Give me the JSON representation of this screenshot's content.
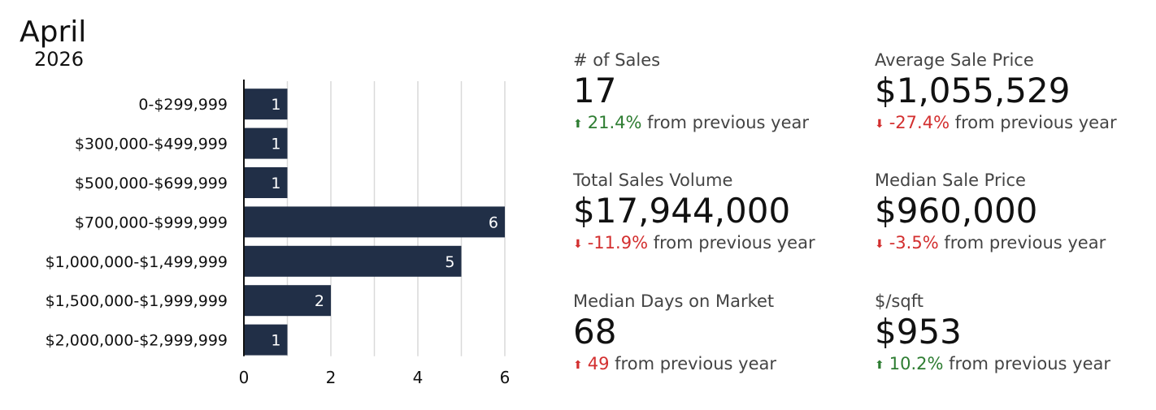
{
  "header": {
    "month": "April",
    "year": "2026"
  },
  "chart_data": {
    "type": "bar",
    "orientation": "horizontal",
    "categories": [
      "0-$299,999",
      "$300,000-$499,999",
      "$500,000-$699,999",
      "$700,000-$999,999",
      "$1,000,000-$1,499,999",
      "$1,500,000-$1,999,999",
      "$2,000,000-$2,999,999"
    ],
    "values": [
      1,
      1,
      1,
      6,
      5,
      2,
      1
    ],
    "xlim": [
      0,
      6
    ],
    "xticks": [
      "0",
      "2",
      "4",
      "6"
    ],
    "grid": true,
    "bar_color": "#212f47",
    "title": "",
    "xlabel": "",
    "ylabel": ""
  },
  "stats": [
    {
      "label": "# of Sales",
      "value": "17",
      "change": "21.4%",
      "direction": "up",
      "change_color": "#2e7d32",
      "suffix": "from previous year"
    },
    {
      "label": "Average Sale Price",
      "value": "$1,055,529",
      "change": "-27.4%",
      "direction": "down",
      "change_color": "#d32f2f",
      "suffix": "from previous year"
    },
    {
      "label": "Total Sales Volume",
      "value": "$17,944,000",
      "change": "-11.9%",
      "direction": "down",
      "change_color": "#d32f2f",
      "suffix": "from previous year"
    },
    {
      "label": "Median Sale Price",
      "value": "$960,000",
      "change": "-3.5%",
      "direction": "down",
      "change_color": "#d32f2f",
      "suffix": "from previous year"
    },
    {
      "label": "Median Days on Market",
      "value": "68",
      "change": "49",
      "direction": "up",
      "change_color": "#d32f2f",
      "suffix": "from previous year"
    },
    {
      "label": "$/sqft",
      "value": "$953",
      "change": "10.2%",
      "direction": "up",
      "change_color": "#2e7d32",
      "suffix": "from previous year"
    }
  ],
  "icons": {
    "up": "arrow-up-icon",
    "down": "arrow-down-icon"
  }
}
